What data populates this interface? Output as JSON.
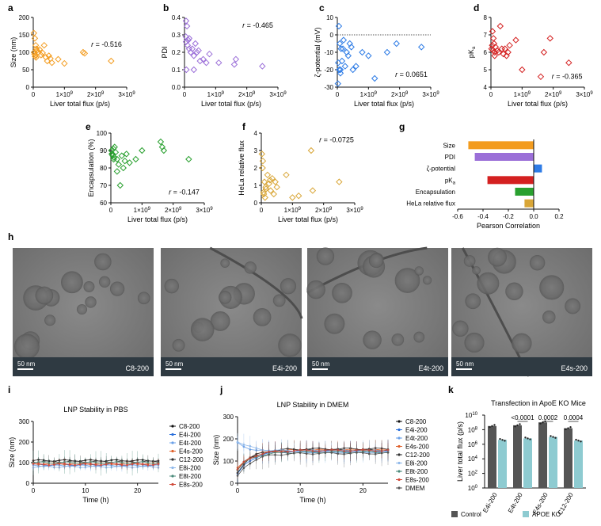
{
  "panel_letters": [
    "a",
    "b",
    "c",
    "d",
    "e",
    "f",
    "g",
    "h",
    "i",
    "j",
    "k"
  ],
  "colors": {
    "size": "#f39c1f",
    "pdi": "#9b6fd8",
    "zeta": "#2e7ce6",
    "pka": "#d42020",
    "encap": "#29a02f",
    "hela": "#d9a637",
    "control": "#555555",
    "apoe": "#8ecbd1"
  },
  "scatter_common": {
    "xlabel": "Liver total flux (p/s)",
    "xticks": [
      "0",
      "1×10",
      "2×10",
      "3×10"
    ],
    "xexp": "9"
  },
  "chart_data": [
    {
      "id": "a",
      "type": "scatter",
      "xlabel": "Liver total flux (p/s)",
      "ylabel": "Size (nm)",
      "ylim": [
        0,
        200
      ],
      "yticks": [
        "0",
        "50",
        "100",
        "150",
        "200"
      ],
      "xlim": [
        0,
        3
      ],
      "r_text": "r = -0.516",
      "x": [
        0.02,
        0.05,
        0.08,
        0.1,
        0.03,
        0.04,
        0.12,
        0.15,
        0.2,
        0.25,
        0.3,
        0.35,
        0.4,
        0.45,
        0.5,
        0.55,
        0.6,
        0.8,
        1.0,
        1.6,
        1.65,
        2.5,
        0.06,
        0.07,
        0.09
      ],
      "y": [
        155,
        140,
        120,
        110,
        100,
        95,
        105,
        100,
        108,
        92,
        98,
        120,
        86,
        75,
        90,
        82,
        70,
        80,
        68,
        100,
        97,
        75,
        88,
        92,
        85
      ]
    },
    {
      "id": "b",
      "type": "scatter",
      "xlabel": "Liver total flux (p/s)",
      "ylabel": "PDI",
      "ylim": [
        0,
        0.4
      ],
      "yticks": [
        "0.0",
        "0.1",
        "0.2",
        "0.3",
        "0.4"
      ],
      "xlim": [
        0,
        3
      ],
      "r_text": "r = -0.465",
      "x": [
        0.05,
        0.1,
        0.12,
        0.15,
        0.05,
        0.08,
        0.2,
        0.25,
        0.3,
        0.35,
        0.4,
        0.45,
        0.5,
        0.6,
        0.7,
        0.8,
        1.1,
        1.6,
        1.65,
        2.5,
        0.06,
        0.04,
        0.15,
        0.3
      ],
      "y": [
        0.26,
        0.24,
        0.27,
        0.28,
        0.38,
        0.35,
        0.2,
        0.22,
        0.18,
        0.25,
        0.2,
        0.21,
        0.15,
        0.16,
        0.14,
        0.19,
        0.14,
        0.13,
        0.16,
        0.12,
        0.1,
        0.29,
        0.22,
        0.1
      ]
    },
    {
      "id": "c",
      "type": "scatter",
      "xlabel": "Liver total flux (p/s)",
      "ylabel": "ζ-potential (mV)",
      "ylim": [
        -30,
        10
      ],
      "yticks": [
        "-30",
        "-20",
        "-10",
        "0",
        "10"
      ],
      "xlim": [
        0,
        3
      ],
      "r_text": "r = 0.0651",
      "zero_line": true,
      "x": [
        0.02,
        0.05,
        0.08,
        0.1,
        0.12,
        0.15,
        0.2,
        0.25,
        0.3,
        0.35,
        0.4,
        0.45,
        0.5,
        0.6,
        0.8,
        1.0,
        1.2,
        1.6,
        1.9,
        2.7,
        0.03,
        0.06,
        0.1,
        0.18
      ],
      "y": [
        -28,
        5,
        -5,
        -20,
        -8,
        -15,
        -3,
        -18,
        -10,
        -12,
        -5,
        -7,
        -20,
        -18,
        -10,
        -12,
        -25,
        -10,
        -5,
        -7,
        -16,
        -20,
        -22,
        -8
      ]
    },
    {
      "id": "d",
      "type": "scatter",
      "xlabel": "Liver total flux (p/s)",
      "ylabel": "pKa",
      "ylim": [
        4,
        8
      ],
      "yticks": [
        "4",
        "5",
        "6",
        "7",
        "8"
      ],
      "xlim": [
        0,
        3
      ],
      "r_text": "r = -0.365",
      "x": [
        0.02,
        0.05,
        0.08,
        0.1,
        0.12,
        0.15,
        0.2,
        0.25,
        0.3,
        0.35,
        0.4,
        0.45,
        0.5,
        0.55,
        0.6,
        0.8,
        1.0,
        1.6,
        1.7,
        1.9,
        2.5,
        0.04,
        0.07,
        0.12
      ],
      "y": [
        6.2,
        7.2,
        6.8,
        6.5,
        6.0,
        6.3,
        6.1,
        6.0,
        7.5,
        6.2,
        5.9,
        6.2,
        5.8,
        6.0,
        6.4,
        6.7,
        5.0,
        4.6,
        6.0,
        6.8,
        5.4,
        6.4,
        6.1,
        5.8
      ]
    },
    {
      "id": "e",
      "type": "scatter",
      "xlabel": "Liver total flux (p/s)",
      "ylabel": "Encapsulation (%)",
      "ylim": [
        60,
        100
      ],
      "yticks": [
        "60",
        "70",
        "80",
        "90",
        "100"
      ],
      "xlim": [
        0,
        3
      ],
      "r_text": "r = -0.147",
      "x": [
        0.02,
        0.05,
        0.08,
        0.1,
        0.12,
        0.15,
        0.2,
        0.25,
        0.3,
        0.35,
        0.4,
        0.45,
        0.5,
        0.6,
        0.8,
        1.0,
        1.6,
        1.65,
        1.7,
        2.5,
        0.03,
        0.06,
        0.09,
        0.2
      ],
      "y": [
        90,
        88,
        91,
        86,
        92,
        89,
        85,
        82,
        70,
        87,
        80,
        84,
        88,
        83,
        85,
        90,
        95,
        92,
        90,
        85,
        88,
        87,
        85,
        78
      ]
    },
    {
      "id": "f",
      "type": "scatter",
      "xlabel": "Liver total flux (p/s)",
      "ylabel": "HeLa relative flux",
      "ylim": [
        0,
        4
      ],
      "yticks": [
        "0",
        "1",
        "2",
        "3",
        "4"
      ],
      "xlim": [
        0,
        3
      ],
      "r_text": "r = -0.0725",
      "x": [
        0.02,
        0.05,
        0.08,
        0.1,
        0.12,
        0.15,
        0.2,
        0.25,
        0.3,
        0.35,
        0.4,
        0.45,
        0.5,
        0.8,
        1.0,
        1.2,
        1.6,
        1.65,
        2.5,
        0.04,
        0.07,
        0.14,
        0.28
      ],
      "y": [
        2.8,
        2.4,
        0.5,
        1.2,
        0.3,
        0.8,
        1.6,
        1.1,
        0.7,
        1.4,
        0.5,
        1.2,
        0.9,
        1.6,
        0.3,
        0.4,
        3.0,
        0.7,
        1.2,
        2.0,
        0.6,
        0.9,
        1.3
      ]
    },
    {
      "id": "g",
      "type": "bar",
      "orientation": "horizontal",
      "categories": [
        "Size",
        "PDI",
        "ζ-potential",
        "pKa",
        "Encapsulation",
        "HeLa relative flux"
      ],
      "values": [
        -0.516,
        -0.465,
        0.0651,
        -0.365,
        -0.147,
        -0.0725
      ],
      "xlim": [
        -0.6,
        0.2
      ],
      "xticks": [
        "-0.6",
        "-0.4",
        "-0.2",
        "0.0",
        "0.2"
      ],
      "xlabel": "Pearson Correlation"
    },
    {
      "id": "i",
      "type": "line",
      "title": "LNP Stability in PBS",
      "xlabel": "Time (h)",
      "ylabel": "Size (nm)",
      "ylim": [
        0,
        300
      ],
      "yticks": [
        "0",
        "100",
        "200",
        "300"
      ],
      "xlim": [
        0,
        24
      ],
      "xticks": [
        "0",
        "10",
        "20"
      ],
      "series": [
        {
          "name": "C8-200",
          "level": 110,
          "err": 15,
          "color": "#111111"
        },
        {
          "name": "E4i-200",
          "level": 90,
          "err": 20,
          "color": "#2a6fdb"
        },
        {
          "name": "E4t-200",
          "level": 85,
          "err": 25,
          "color": "#6aa0e8"
        },
        {
          "name": "E4s-200",
          "level": 95,
          "err": 20,
          "color": "#e0602a"
        },
        {
          "name": "C12-200",
          "level": 105,
          "err": 30,
          "color": "#333333"
        },
        {
          "name": "E8i-200",
          "level": 80,
          "err": 20,
          "color": "#8fb8ea"
        },
        {
          "name": "E8t-200",
          "level": 100,
          "err": 60,
          "color": "#4a8a7a"
        },
        {
          "name": "E8s-200",
          "level": 92,
          "err": 25,
          "color": "#d04a3a"
        }
      ]
    },
    {
      "id": "j",
      "type": "line",
      "title": "LNP Stability in DMEM",
      "xlabel": "Time (h)",
      "ylabel": "Size (nm)",
      "ylim": [
        0,
        300
      ],
      "yticks": [
        "0",
        "100",
        "200",
        "300"
      ],
      "xlim": [
        0,
        24
      ],
      "xticks": [
        "0",
        "10",
        "20"
      ],
      "series": [
        {
          "name": "C8-200",
          "start": 60,
          "level": 150,
          "err": 40,
          "color": "#111111"
        },
        {
          "name": "E4i-200",
          "start": 40,
          "level": 145,
          "err": 50,
          "color": "#2a6fdb"
        },
        {
          "name": "E4t-200",
          "start": 180,
          "level": 140,
          "err": 50,
          "color": "#6aa0e8"
        },
        {
          "name": "E4s-200",
          "start": 70,
          "level": 150,
          "err": 45,
          "color": "#e0602a"
        },
        {
          "name": "C12-200",
          "start": 50,
          "level": 155,
          "err": 40,
          "color": "#333333"
        },
        {
          "name": "E8i-200",
          "start": 190,
          "level": 145,
          "err": 50,
          "color": "#8fb8ea"
        },
        {
          "name": "E8t-200",
          "start": 60,
          "level": 140,
          "err": 45,
          "color": "#4a8a7a"
        },
        {
          "name": "E8s-200",
          "start": 60,
          "level": 148,
          "err": 45,
          "color": "#d04a3a"
        },
        {
          "name": "DMEM",
          "start": 30,
          "level": 135,
          "err": 60,
          "color": "#555555"
        }
      ]
    },
    {
      "id": "k",
      "type": "bar",
      "title": "Transfection in ApoE KO Mice",
      "ylabel": "Liver total flux (p/s)",
      "yscale": "log",
      "ylim_exp": [
        0,
        10
      ],
      "yticks": [
        "10",
        "10",
        "10",
        "10",
        "10",
        "10"
      ],
      "yexps": [
        "0",
        "2",
        "4",
        "6",
        "8",
        "10"
      ],
      "categories": [
        "E4i-200",
        "E4t-200",
        "E4s-200",
        "C12-200"
      ],
      "series": [
        {
          "name": "Control",
          "log_values": [
            8.5,
            8.6,
            9.0,
            8.2
          ]
        },
        {
          "name": "APOE KO",
          "log_values": [
            6.6,
            6.8,
            7.0,
            6.5
          ]
        }
      ],
      "pvalues": [
        "",
        "<0.0001",
        "0.0002",
        "0.0004"
      ]
    }
  ],
  "cryo": {
    "scale": "50 nm",
    "labels": [
      "C8-200",
      "E4i-200",
      "E4t-200",
      "E4s-200"
    ]
  }
}
